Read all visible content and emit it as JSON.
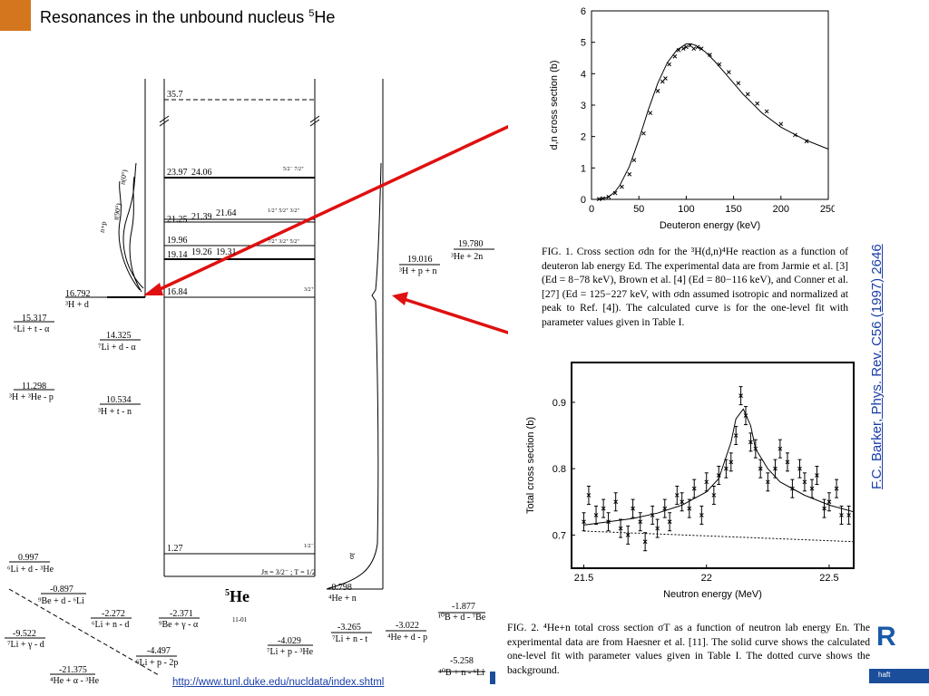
{
  "slide": {
    "title_main": "Resonances in the unbound nucleus ",
    "title_sup": "5",
    "title_end": "He",
    "accent_color": "#d4761e",
    "arrow_color": "#e01010"
  },
  "level_diagram": {
    "nucleus_sup": "5",
    "nucleus": "He",
    "diagram_id": "11-01",
    "jpi_line": "Jπ = 3/2⁻ ; T = 1/2",
    "levels": [
      {
        "energy": "35.7"
      },
      {
        "energy": "23.97"
      },
      {
        "energy": "24.06"
      },
      {
        "energy": "21.25"
      },
      {
        "energy": "21.39"
      },
      {
        "energy": "21.64"
      },
      {
        "energy": "19.96"
      },
      {
        "energy": "19.14"
      },
      {
        "energy": "19.26"
      },
      {
        "energy": "19.31"
      },
      {
        "energy": "16.84"
      },
      {
        "energy": "1.27"
      }
    ],
    "left_thresholds": [
      {
        "value": "16.792",
        "channel": "³H + d"
      },
      {
        "value": "15.317",
        "channel": "⁶Li + t - α"
      },
      {
        "value": "14.325",
        "channel": "⁷Li + d - α"
      },
      {
        "value": "11.298",
        "channel": "³H + ³He - p"
      },
      {
        "value": "10.534",
        "channel": "³H + t - n"
      },
      {
        "value": "0.997",
        "channel": "⁶Li + d - ³He"
      },
      {
        "value": "-0.897",
        "channel": "⁹Be + d - ⁶Li"
      },
      {
        "value": "-2.272",
        "channel": "⁶Li + n - d"
      },
      {
        "value": "-2.371",
        "channel": "⁹Be + γ - α"
      },
      {
        "value": "-9.522",
        "channel": "⁷Li + γ - d"
      },
      {
        "value": "-4.497",
        "channel": "⁶Li + p - 2p"
      },
      {
        "value": "-21.375",
        "channel": "⁴He + α - ³He"
      }
    ],
    "right_thresholds": [
      {
        "value": "19.780",
        "channel": "³He + 2n"
      },
      {
        "value": "19.016",
        "channel": "³H + p + n"
      },
      {
        "value": "-0.798",
        "channel": "⁴He + n"
      },
      {
        "value": "-1.877",
        "channel": "¹⁰B + d - ⁷Be"
      },
      {
        "value": "-3.265",
        "channel": "⁷Li + n - t"
      },
      {
        "value": "-3.022",
        "channel": "⁴He + d - p"
      },
      {
        "value": "-4.029",
        "channel": "⁷Li + p - ³He"
      },
      {
        "value": "-5.258",
        "channel": "¹⁰B + n - ⁶Li"
      }
    ],
    "curve_labels": {
      "n0": "n(0°)",
      "t90": "t(90°)",
      "np": "n+p",
      "sigma": "σt"
    }
  },
  "figure1": {
    "caption": "FIG. 1. Cross section σdn for the ³H(d,n)⁴He reaction as a function of deuteron lab energy Ed. The experimental data are from Jarmie et al. [3] (Ed = 8−78 keV), Brown et al. [4] (Ed = 80−116 keV), and Conner et al. [27] (Ed = 125−227 keV, with σdn assumed isotropic and normalized at peak to Ref. [4]). The calculated curve is for the one-level fit with parameter values given in Table I.",
    "xlabel": "Deuteron energy  (keV)",
    "ylabel": "d,n cross section  (b)"
  },
  "figure2": {
    "caption": "FIG. 2. ⁴He+n total cross section σT as a function of neutron lab energy En. The experimental data are from Haesner et al. [11]. The solid curve shows the calculated one-level fit with parameter values given in Table I. The dotted curve shows the background.",
    "xlabel": "Neutron energy  (MeV)",
    "ylabel": "Total cross section  (b)"
  },
  "chart_data": [
    {
      "type": "line",
      "title": "",
      "xlabel": "Deuteron energy  (keV)",
      "ylabel": "d,n cross section  (b)",
      "xlim": [
        0,
        250
      ],
      "ylim": [
        0,
        6
      ],
      "xticks": [
        0,
        50,
        100,
        150,
        200,
        250
      ],
      "yticks": [
        0,
        1,
        2,
        3,
        4,
        5,
        6
      ],
      "series": [
        {
          "x": [
            5,
            10,
            15,
            20,
            25,
            30,
            40,
            50,
            60,
            70,
            80,
            90,
            100,
            105,
            110,
            120,
            130,
            140,
            150,
            160,
            170,
            180,
            200,
            225,
            250
          ],
          "y": [
            0.0,
            0.02,
            0.05,
            0.12,
            0.25,
            0.45,
            1.05,
            1.9,
            2.85,
            3.7,
            4.35,
            4.75,
            4.95,
            4.95,
            4.9,
            4.7,
            4.4,
            4.05,
            3.7,
            3.35,
            3.05,
            2.75,
            2.3,
            1.9,
            1.6
          ]
        },
        {
          "x": [
            8,
            12,
            18,
            25,
            32,
            40,
            45,
            55,
            62,
            70,
            75,
            78,
            82,
            88,
            92,
            97,
            100,
            104,
            108,
            112,
            116,
            125,
            135,
            145,
            155,
            165,
            175,
            185,
            200,
            215,
            227
          ],
          "y": [
            0.01,
            0.03,
            0.08,
            0.2,
            0.4,
            0.8,
            1.25,
            2.1,
            2.75,
            3.45,
            3.75,
            3.85,
            4.3,
            4.55,
            4.75,
            4.8,
            4.85,
            4.9,
            4.8,
            4.85,
            4.8,
            4.6,
            4.3,
            4.05,
            3.7,
            3.35,
            3.05,
            2.8,
            2.4,
            2.05,
            1.85
          ]
        }
      ]
    },
    {
      "type": "line",
      "title": "",
      "xlabel": "Neutron energy  (MeV)",
      "ylabel": "Total cross section  (b)",
      "xlim": [
        21.45,
        22.6
      ],
      "ylim": [
        0.65,
        0.96
      ],
      "xticks": [
        21.5,
        22.0,
        22.5
      ],
      "yticks": [
        0.7,
        0.8,
        0.9
      ],
      "series": [
        {
          "x": [
            21.5,
            21.6,
            21.7,
            21.8,
            21.9,
            22.0,
            22.05,
            22.1,
            22.12,
            22.15,
            22.18,
            22.2,
            22.25,
            22.3,
            22.4,
            22.5,
            22.6
          ],
          "y": [
            0.715,
            0.72,
            0.725,
            0.733,
            0.745,
            0.765,
            0.785,
            0.84,
            0.875,
            0.89,
            0.865,
            0.83,
            0.8,
            0.78,
            0.76,
            0.745,
            0.735
          ]
        },
        {
          "x": [
            21.5,
            22.6
          ],
          "y": [
            0.706,
            0.69
          ]
        },
        {
          "x": [
            21.5,
            21.52,
            21.55,
            21.58,
            21.6,
            21.63,
            21.65,
            21.68,
            21.7,
            21.73,
            21.75,
            21.78,
            21.8,
            21.83,
            21.85,
            21.88,
            21.9,
            21.93,
            21.95,
            21.98,
            22.0,
            22.03,
            22.05,
            22.08,
            22.1,
            22.12,
            22.14,
            22.16,
            22.18,
            22.2,
            22.22,
            22.25,
            22.28,
            22.3,
            22.33,
            22.35,
            22.38,
            22.4,
            22.43,
            22.45,
            22.48,
            22.5,
            22.53,
            22.55,
            22.58
          ],
          "y": [
            0.72,
            0.76,
            0.73,
            0.74,
            0.72,
            0.75,
            0.71,
            0.7,
            0.74,
            0.72,
            0.69,
            0.73,
            0.71,
            0.74,
            0.72,
            0.76,
            0.75,
            0.74,
            0.77,
            0.73,
            0.78,
            0.76,
            0.79,
            0.8,
            0.81,
            0.85,
            0.91,
            0.88,
            0.84,
            0.83,
            0.8,
            0.78,
            0.8,
            0.83,
            0.81,
            0.77,
            0.8,
            0.78,
            0.77,
            0.79,
            0.74,
            0.75,
            0.77,
            0.73,
            0.73
          ]
        }
      ]
    }
  ],
  "links": {
    "citation": "F.C. Barker, Phys. Rev. C56 (1997) 2646",
    "url": "http://www.tunl.duke.edu/nucldata/index.shtml"
  },
  "footer": {
    "text": "haft",
    "logo": "R"
  }
}
